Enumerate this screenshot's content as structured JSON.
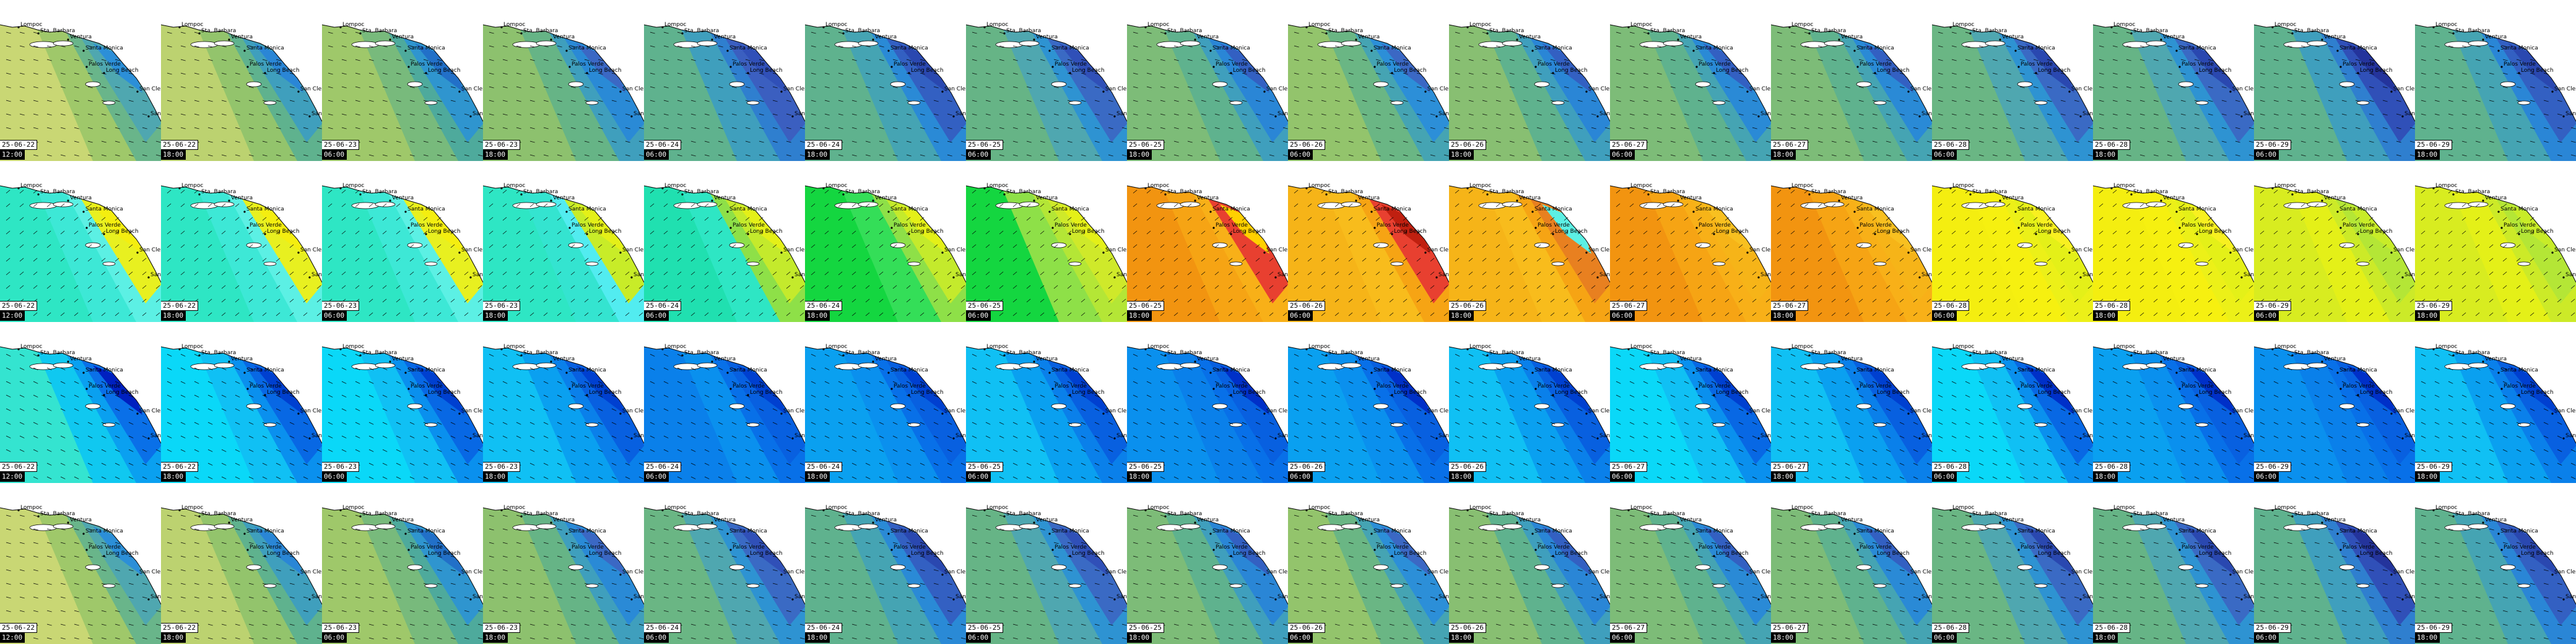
{
  "places": [
    "Sta. Barbara",
    "Ventura",
    "Santa Monica",
    "Palos Verde",
    "Long Beach",
    "San Clemente",
    "San Diego",
    "Lompoc"
  ],
  "dates": [
    "25-06-22",
    "25-06-22",
    "25-06-23",
    "25-06-23",
    "25-06-24",
    "25-06-24",
    "25-06-25",
    "25-06-25",
    "25-06-26",
    "25-06-26",
    "25-06-27",
    "25-06-27",
    "25-06-28",
    "25-06-28",
    "25-06-29",
    "25-06-29"
  ],
  "times": [
    "12:00",
    "18:00",
    "06:00",
    "18:00",
    "06:00",
    "18:00",
    "06:00",
    "18:00",
    "06:00",
    "18:00",
    "06:00",
    "18:00",
    "06:00",
    "18:00",
    "06:00",
    "18:00"
  ],
  "row_colors": [
    [
      [
        "#c9d774",
        "#9fc86a",
        "#69b58a",
        "#4fa7b0",
        "#2c8fd8"
      ],
      [
        "#bcd270",
        "#93c46c",
        "#5fb28e",
        "#3f9fbd",
        "#2a86d6"
      ],
      [
        "#9fc86a",
        "#78ba7c",
        "#4eaa9c",
        "#2f95cf",
        "#2270c8"
      ],
      [
        "#8dc16e",
        "#66b486",
        "#3f9fbd",
        "#2a8ad6",
        "#3b68c4"
      ],
      [
        "#5fb28e",
        "#3f9fbd",
        "#2f7fcf",
        "#3b5fc0",
        "#3050b8"
      ],
      [
        "#5fb28e",
        "#45a4b3",
        "#2a8ad6",
        "#3360c2",
        "#2a48b0"
      ],
      [
        "#66b486",
        "#4fa7b0",
        "#2e93d2",
        "#3a6ac4",
        "#3050b8"
      ],
      [
        "#7dbc78",
        "#5fb28e",
        "#3f9fbd",
        "#2a86d6",
        "#3360c2"
      ],
      [
        "#93c46c",
        "#6ab684",
        "#45a4b3",
        "#2c8fd8",
        "#3b68c4"
      ],
      [
        "#88bf72",
        "#5fb28e",
        "#3f9fbd",
        "#2a86d6",
        "#3360c2"
      ],
      [
        "#7dbc78",
        "#5fb28e",
        "#45a4b3",
        "#2a8ad6",
        "#3360c2"
      ],
      [
        "#7dbc78",
        "#5fb28e",
        "#45a4b3",
        "#2a8ad6",
        "#3360c2"
      ],
      [
        "#6ab684",
        "#4fa7b0",
        "#2e93d2",
        "#3a6ac4",
        "#2a48b0"
      ],
      [
        "#66b486",
        "#4fa7b0",
        "#2e93d2",
        "#3a6ac4",
        "#2a48b0"
      ],
      [
        "#5fb28e",
        "#3f9fbd",
        "#2f7fcf",
        "#3050b8",
        "#24349c"
      ],
      [
        "#5fb28e",
        "#45a4b3",
        "#2a86d6",
        "#3360c2",
        "#2a48b0"
      ]
    ],
    [
      [
        "#2ee6c4",
        "#3de8d6",
        "#5cf0e4",
        "#e8f020",
        "#f4ee10"
      ],
      [
        "#2ee6c4",
        "#3de8d6",
        "#5cf0e4",
        "#e8f020",
        "#f4ee10"
      ],
      [
        "#2ee6c4",
        "#3de8d6",
        "#5cf0e4",
        "#e8f020",
        "#f4ee10"
      ],
      [
        "#2ee6c4",
        "#34e4d0",
        "#52ecf0",
        "#c8ec28",
        "#e4f018"
      ],
      [
        "#20e0b0",
        "#2ee6c4",
        "#8ee048",
        "#c4ea2c",
        "#e4f018"
      ],
      [
        "#14d640",
        "#34de58",
        "#8ee048",
        "#c4ea2c",
        "#e4f018"
      ],
      [
        "#14d640",
        "#8ee048",
        "#b4e636",
        "#cfe92a",
        "#e4f018"
      ],
      [
        "#f29410",
        "#f6a414",
        "#f8b018",
        "#e84030",
        "#ffd000"
      ],
      [
        "#f6b418",
        "#f8bc1c",
        "#f6a414",
        "#e84030",
        "#c02010"
      ],
      [
        "#f6b418",
        "#f8bc1c",
        "#f6a414",
        "#e88020",
        "#5cf0e4"
      ],
      [
        "#f29410",
        "#f6a414",
        "#f8b018",
        "#f6b418",
        "#f8c020"
      ],
      [
        "#f29410",
        "#f6a414",
        "#f8b018",
        "#f6b418",
        "#f8c020"
      ],
      [
        "#f4ee10",
        "#f6f010",
        "#ecf018",
        "#e4f018",
        "#f8f020"
      ],
      [
        "#f4ee10",
        "#f6f010",
        "#ecf018",
        "#e4f018",
        "#f8f020"
      ],
      [
        "#d8ec20",
        "#e4f018",
        "#ccea28",
        "#b4e636",
        "#c8ec28"
      ],
      [
        "#d8ec20",
        "#e4f018",
        "#ccea28",
        "#b4e636",
        "#c8ec28"
      ]
    ],
    [
      [
        "#34e4d0",
        "#10c8f0",
        "#0aa0f0",
        "#0a70e8",
        "#0020c0"
      ],
      [
        "#0ad8f8",
        "#10c0f4",
        "#0a90ee",
        "#0868e4",
        "#0040d0"
      ],
      [
        "#0ad8f8",
        "#10c0f4",
        "#0a90ee",
        "#0868e4",
        "#0040d0"
      ],
      [
        "#10c0f4",
        "#0aa0f0",
        "#0a80ea",
        "#0860e0",
        "#0040d0"
      ],
      [
        "#0a80ea",
        "#0a90ee",
        "#0870e8",
        "#0860e0",
        "#0040d0"
      ],
      [
        "#0aa0f0",
        "#0a90ee",
        "#0870e8",
        "#0860e0",
        "#0040d0"
      ],
      [
        "#10c0f4",
        "#0aa0f0",
        "#0a80ea",
        "#0860e0",
        "#0040d0"
      ],
      [
        "#0a90ee",
        "#0a80ea",
        "#0870e8",
        "#0860e0",
        "#0030c8"
      ],
      [
        "#0aa0f0",
        "#0a90ee",
        "#0870e8",
        "#0860e0",
        "#0030c8"
      ],
      [
        "#10c0f4",
        "#0aa0f0",
        "#0a80ea",
        "#0860e0",
        "#0040d0"
      ],
      [
        "#0ad8f8",
        "#10c0f4",
        "#0a90ee",
        "#0868e4",
        "#0040d0"
      ],
      [
        "#10c0f4",
        "#0aa0f0",
        "#0a80ea",
        "#0860e0",
        "#0040d0"
      ],
      [
        "#0ad8f8",
        "#10c0f4",
        "#0a90ee",
        "#0868e4",
        "#0030c8"
      ],
      [
        "#0aa0f0",
        "#0a90ee",
        "#0870e8",
        "#0860e0",
        "#0030c8"
      ],
      [
        "#0a90ee",
        "#0a80ea",
        "#0870e8",
        "#0860e0",
        "#0030c8"
      ],
      [
        "#10c0f4",
        "#0aa0f0",
        "#0a80ea",
        "#0860e0",
        "#0040d0"
      ]
    ],
    [
      [
        "#c9d774",
        "#9fc86a",
        "#69b58a",
        "#4fa7b0",
        "#2c8fd8"
      ],
      [
        "#bcd270",
        "#93c46c",
        "#5fb28e",
        "#3f9fbd",
        "#2a86d6"
      ],
      [
        "#9fc86a",
        "#78ba7c",
        "#4eaa9c",
        "#2f95cf",
        "#2270c8"
      ],
      [
        "#8dc16e",
        "#66b486",
        "#3f9fbd",
        "#2a8ad6",
        "#3b68c4"
      ],
      [
        "#6ab684",
        "#4fa7b0",
        "#2e93d2",
        "#3a6ac4",
        "#3050b8"
      ],
      [
        "#5fb28e",
        "#45a4b3",
        "#2a8ad6",
        "#3360c2",
        "#2a48b0"
      ],
      [
        "#66b486",
        "#4fa7b0",
        "#2e93d2",
        "#3a6ac4",
        "#3050b8"
      ],
      [
        "#7dbc78",
        "#5fb28e",
        "#3f9fbd",
        "#2a86d6",
        "#3360c2"
      ],
      [
        "#93c46c",
        "#6ab684",
        "#45a4b3",
        "#2c8fd8",
        "#3b68c4"
      ],
      [
        "#88bf72",
        "#5fb28e",
        "#3f9fbd",
        "#2a86d6",
        "#3360c2"
      ],
      [
        "#7dbc78",
        "#5fb28e",
        "#45a4b3",
        "#2a8ad6",
        "#3360c2"
      ],
      [
        "#7dbc78",
        "#5fb28e",
        "#45a4b3",
        "#2a8ad6",
        "#3360c2"
      ],
      [
        "#6ab684",
        "#4fa7b0",
        "#2e93d2",
        "#3a6ac4",
        "#2a48b0"
      ],
      [
        "#66b486",
        "#4fa7b0",
        "#2e93d2",
        "#3a6ac4",
        "#2a48b0"
      ],
      [
        "#5fb28e",
        "#3f9fbd",
        "#2f7fcf",
        "#3050b8",
        "#24349c"
      ],
      [
        "#5fb28e",
        "#45a4b3",
        "#2a86d6",
        "#3360c2",
        "#2a48b0"
      ]
    ]
  ]
}
